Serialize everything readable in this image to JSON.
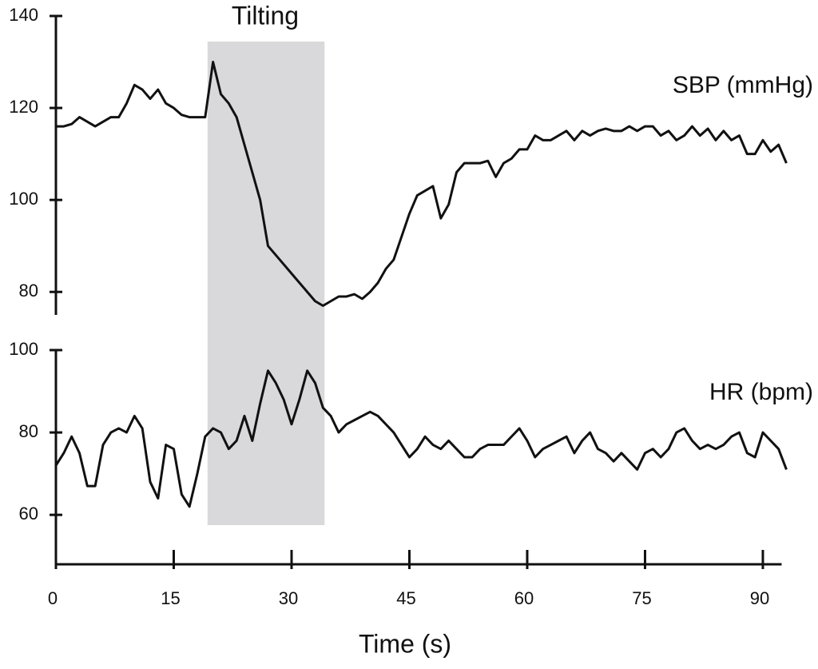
{
  "chart_data": [
    {
      "type": "line",
      "title": "Tilting",
      "shade": {
        "x": [
          19.3,
          34.2
        ]
      },
      "x": [
        0,
        1,
        2,
        3,
        4,
        5,
        6,
        7,
        8,
        9,
        10,
        11,
        12,
        13,
        14,
        15,
        16,
        17,
        18,
        19,
        20,
        21,
        22,
        23,
        24,
        25,
        26,
        27,
        28,
        29,
        30,
        31,
        32,
        33,
        34,
        35,
        36,
        37,
        38,
        39,
        40,
        41,
        42,
        43,
        44,
        45,
        46,
        47,
        48,
        49,
        50,
        51,
        52,
        53,
        54,
        55,
        56,
        57,
        58,
        59,
        60,
        61,
        62,
        63,
        64,
        65,
        66,
        67,
        68,
        69,
        70,
        71,
        72,
        73,
        74,
        75,
        76,
        77,
        78,
        79,
        80,
        81,
        82,
        83,
        84,
        85,
        86,
        87,
        88,
        89,
        90,
        91,
        92,
        93
      ],
      "series": [
        {
          "name": "SBP (mmHg)",
          "color": "#111111",
          "values": [
            116,
            116,
            116.5,
            118,
            117,
            116,
            117,
            118,
            118,
            121,
            125,
            124,
            122,
            124,
            121,
            120,
            118.5,
            118,
            118,
            118,
            130,
            123,
            121,
            118,
            112,
            106,
            100,
            90,
            88,
            86,
            84,
            82,
            80,
            78,
            77,
            78,
            79,
            79,
            79.5,
            78.5,
            80,
            82,
            85,
            87,
            92,
            97,
            101,
            102,
            103,
            96,
            99,
            106,
            108,
            108,
            108,
            108.5,
            105,
            108,
            109,
            111,
            111,
            114,
            113,
            113,
            114,
            115,
            113,
            115,
            114,
            115,
            115.5,
            115,
            115,
            116,
            115,
            116,
            116,
            114,
            115,
            113,
            114,
            116,
            114,
            115.5,
            113,
            115,
            113,
            114,
            110,
            110,
            113,
            110.5,
            112,
            108
          ]
        }
      ],
      "xlim": [
        0,
        93
      ],
      "ylim": [
        75,
        140
      ],
      "yticks": [
        80,
        100,
        120,
        140
      ]
    },
    {
      "type": "line",
      "xlabel": "Time (s)",
      "x": [
        0,
        1,
        2,
        3,
        4,
        5,
        6,
        7,
        8,
        9,
        10,
        11,
        12,
        13,
        14,
        15,
        16,
        17,
        18,
        19,
        20,
        21,
        22,
        23,
        24,
        25,
        26,
        27,
        28,
        29,
        30,
        31,
        32,
        33,
        34,
        35,
        36,
        37,
        38,
        39,
        40,
        41,
        42,
        43,
        44,
        45,
        46,
        47,
        48,
        49,
        50,
        51,
        52,
        53,
        54,
        55,
        56,
        57,
        58,
        59,
        60,
        61,
        62,
        63,
        64,
        65,
        66,
        67,
        68,
        69,
        70,
        71,
        72,
        73,
        74,
        75,
        76,
        77,
        78,
        79,
        80,
        81,
        82,
        83,
        84,
        85,
        86,
        87,
        88,
        89,
        90,
        91,
        92,
        93
      ],
      "series": [
        {
          "name": "HR (bpm)",
          "color": "#111111",
          "values": [
            72,
            75,
            79,
            75,
            67,
            67,
            77,
            80,
            81,
            80,
            84,
            81,
            68,
            64,
            77,
            76,
            65,
            62,
            70,
            79,
            81,
            80,
            76,
            78,
            84,
            78,
            87,
            95,
            92,
            88,
            82,
            88,
            95,
            92,
            86,
            84,
            80,
            82,
            83,
            84,
            85,
            84,
            82,
            80,
            77,
            74,
            76,
            79,
            77,
            76,
            78,
            76,
            74,
            74,
            76,
            77,
            77,
            77,
            79,
            81,
            78,
            74,
            76,
            77,
            78,
            79,
            75,
            78,
            80,
            76,
            75,
            73,
            75,
            73,
            71,
            75,
            76,
            74,
            76,
            80,
            81,
            78,
            76,
            77,
            76,
            77,
            79,
            80,
            75,
            74,
            80,
            78,
            76,
            71
          ]
        }
      ],
      "xlim": [
        0,
        93
      ],
      "xticks": [
        0,
        15,
        30,
        45,
        60,
        75,
        90
      ],
      "ylim": [
        48,
        100
      ],
      "yticks": [
        60,
        80,
        100
      ]
    }
  ]
}
